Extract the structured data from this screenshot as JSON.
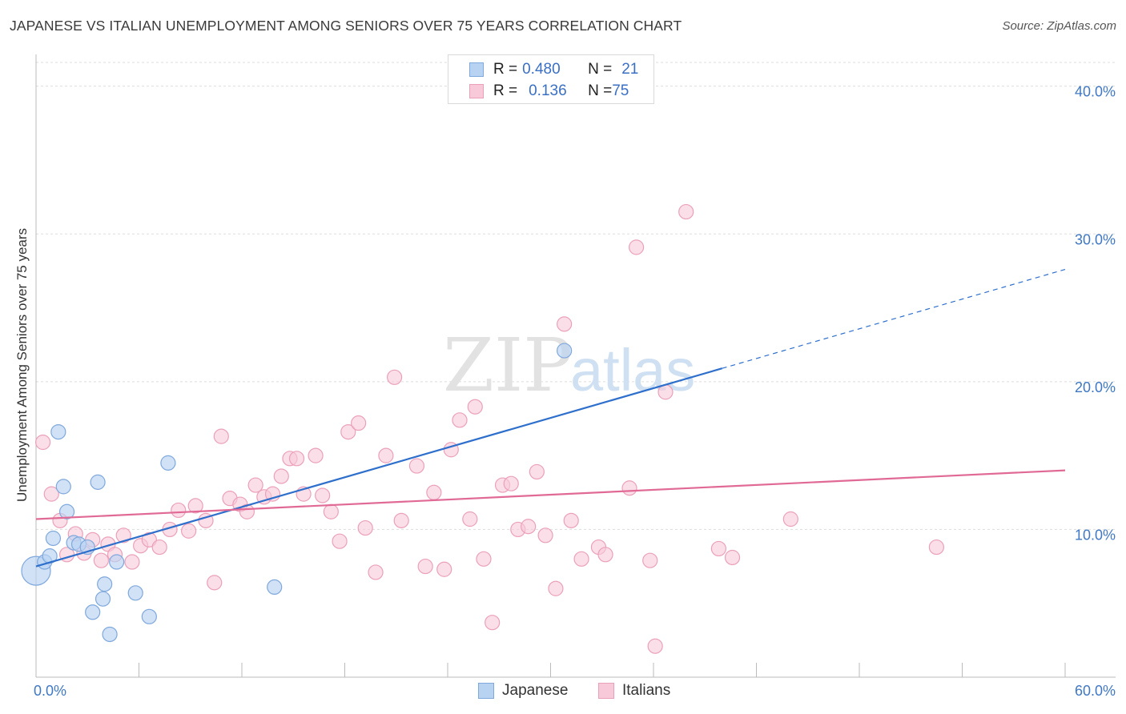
{
  "title": "JAPANESE VS ITALIAN UNEMPLOYMENT AMONG SENIORS OVER 75 YEARS CORRELATION CHART",
  "source": "Source: ZipAtlas.com",
  "watermark": {
    "zip": "ZIP",
    "atlas": "atlas"
  },
  "legend": {
    "japanese": {
      "r_label": "R = ",
      "r_value": "0.480",
      "n_label": "N = ",
      "n_value": "21"
    },
    "italians": {
      "r_label": "R = ",
      "r_value": "0.136",
      "n_label": "N = ",
      "n_value": "75"
    }
  },
  "bottom_legend": {
    "japanese": "Japanese",
    "italians": "Italians"
  },
  "colors": {
    "japanese_fill": "#b8d3f2",
    "japanese_stroke": "#7fa8dc",
    "japanese_line": "#2e6fcc",
    "italian_fill": "#f8c9d8",
    "italian_stroke": "#eba0ba",
    "italian_line": "#e06a95",
    "grid": "#dddddd",
    "tick_label": "#3f78c4"
  },
  "chart_data": {
    "type": "scatter",
    "title": "JAPANESE VS ITALIAN UNEMPLOYMENT AMONG SENIORS OVER 75 YEARS CORRELATION CHART",
    "xlabel": "",
    "ylabel": "Unemployment Among Seniors over 75 years",
    "xlim": [
      0,
      60
    ],
    "ylim": [
      0,
      41.5
    ],
    "x_tick_labels": {
      "min": "0.0%",
      "max": "60.0%"
    },
    "y_ticks": [
      10,
      20,
      30,
      40
    ],
    "y_tick_labels": [
      "10.0%",
      "20.0%",
      "30.0%",
      "40.0%"
    ],
    "grid": true,
    "series": [
      {
        "name": "Japanese",
        "r": 0.48,
        "n": 21,
        "trend": {
          "x0": 0,
          "y0": 7.5,
          "x1": 40,
          "y1": 20.9,
          "dash_to_x": 60,
          "dash_to_y": 27.6
        },
        "points": [
          [
            0.0,
            7.2
          ],
          [
            0.5,
            7.8
          ],
          [
            0.8,
            8.2
          ],
          [
            1.0,
            9.4
          ],
          [
            1.3,
            16.6
          ],
          [
            1.6,
            12.9
          ],
          [
            1.8,
            11.2
          ],
          [
            2.2,
            9.1
          ],
          [
            2.5,
            9.0
          ],
          [
            3.0,
            8.8
          ],
          [
            3.3,
            4.4
          ],
          [
            3.6,
            13.2
          ],
          [
            3.9,
            5.3
          ],
          [
            4.0,
            6.3
          ],
          [
            4.3,
            2.9
          ],
          [
            4.7,
            7.8
          ],
          [
            5.8,
            5.7
          ],
          [
            6.6,
            4.1
          ],
          [
            7.7,
            14.5
          ],
          [
            13.9,
            6.1
          ],
          [
            30.8,
            22.1
          ]
        ]
      },
      {
        "name": "Italians",
        "r": 0.136,
        "n": 75,
        "trend": {
          "x0": 0,
          "y0": 10.7,
          "x1": 60,
          "y1": 14.0
        },
        "points": [
          [
            0.4,
            15.9
          ],
          [
            0.9,
            12.4
          ],
          [
            1.4,
            10.6
          ],
          [
            1.8,
            8.3
          ],
          [
            2.3,
            9.7
          ],
          [
            2.8,
            8.4
          ],
          [
            3.3,
            9.3
          ],
          [
            3.8,
            7.9
          ],
          [
            4.2,
            9.0
          ],
          [
            4.6,
            8.3
          ],
          [
            5.1,
            9.6
          ],
          [
            5.6,
            7.8
          ],
          [
            6.1,
            8.9
          ],
          [
            6.6,
            9.3
          ],
          [
            7.2,
            8.8
          ],
          [
            7.8,
            10.0
          ],
          [
            8.3,
            11.3
          ],
          [
            8.9,
            9.9
          ],
          [
            9.3,
            11.6
          ],
          [
            9.9,
            10.6
          ],
          [
            10.4,
            6.4
          ],
          [
            10.8,
            16.3
          ],
          [
            11.3,
            12.1
          ],
          [
            11.9,
            11.7
          ],
          [
            12.3,
            11.2
          ],
          [
            12.8,
            13.0
          ],
          [
            13.3,
            12.2
          ],
          [
            13.8,
            12.4
          ],
          [
            14.3,
            13.6
          ],
          [
            14.8,
            14.8
          ],
          [
            15.2,
            14.8
          ],
          [
            15.6,
            12.4
          ],
          [
            16.3,
            15.0
          ],
          [
            16.7,
            12.3
          ],
          [
            17.2,
            11.2
          ],
          [
            17.7,
            9.2
          ],
          [
            18.2,
            16.6
          ],
          [
            18.8,
            17.2
          ],
          [
            19.2,
            10.1
          ],
          [
            19.8,
            7.1
          ],
          [
            20.4,
            15.0
          ],
          [
            20.9,
            20.3
          ],
          [
            21.3,
            10.6
          ],
          [
            22.2,
            14.3
          ],
          [
            22.7,
            7.5
          ],
          [
            23.2,
            12.5
          ],
          [
            23.8,
            7.3
          ],
          [
            24.2,
            15.4
          ],
          [
            24.7,
            17.4
          ],
          [
            25.3,
            10.7
          ],
          [
            25.6,
            18.3
          ],
          [
            26.1,
            8.0
          ],
          [
            26.6,
            3.7
          ],
          [
            27.2,
            13.0
          ],
          [
            27.7,
            13.1
          ],
          [
            28.1,
            10.0
          ],
          [
            28.7,
            10.2
          ],
          [
            29.2,
            13.9
          ],
          [
            29.7,
            9.6
          ],
          [
            30.3,
            6.0
          ],
          [
            30.8,
            23.9
          ],
          [
            31.2,
            10.6
          ],
          [
            31.8,
            8.0
          ],
          [
            32.8,
            8.8
          ],
          [
            33.2,
            8.3
          ],
          [
            34.6,
            12.8
          ],
          [
            35.0,
            29.1
          ],
          [
            35.8,
            7.9
          ],
          [
            36.7,
            19.3
          ],
          [
            36.1,
            2.1
          ],
          [
            37.9,
            31.5
          ],
          [
            39.8,
            8.7
          ],
          [
            40.6,
            8.1
          ],
          [
            44.0,
            10.7
          ],
          [
            52.5,
            8.8
          ]
        ]
      }
    ]
  }
}
